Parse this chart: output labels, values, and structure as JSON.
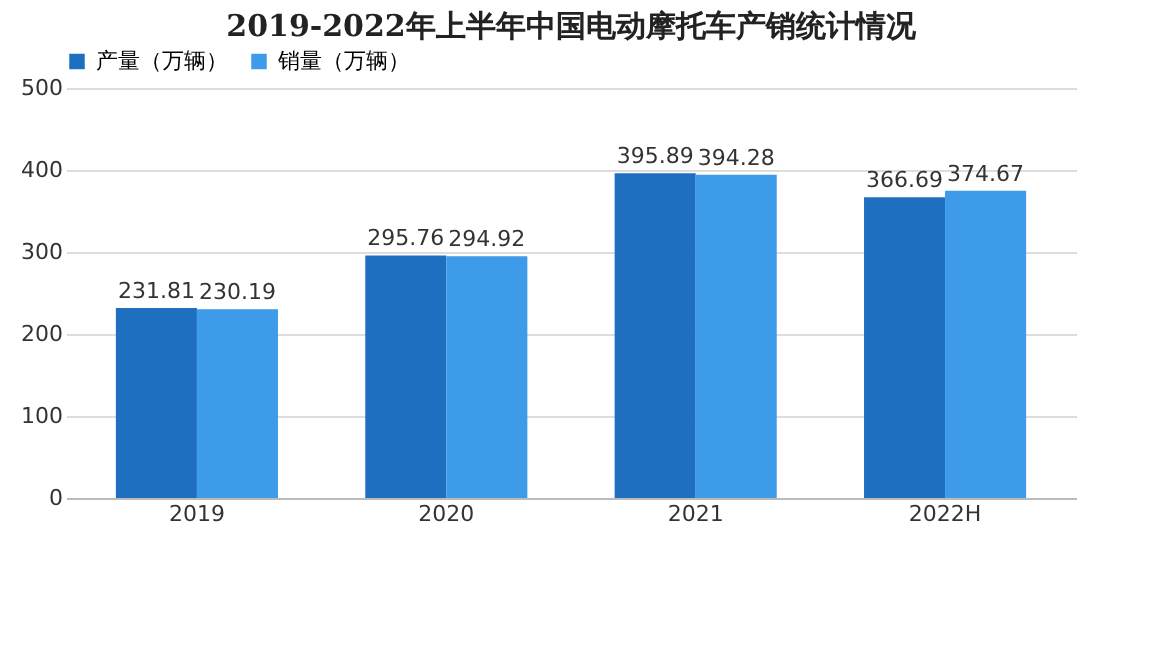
{
  "chart_data": {
    "type": "bar",
    "title": "2019-2022年上半年中国电动摩托车产销统计情况",
    "categories": [
      "2019",
      "2020",
      "2021",
      "2022H"
    ],
    "series": [
      {
        "name": "产量（万辆）",
        "color": "#1f6fc1",
        "values": [
          231.81,
          295.76,
          395.89,
          366.69
        ]
      },
      {
        "name": "销量（万辆）",
        "color": "#3d9be9",
        "values": [
          230.19,
          294.92,
          394.28,
          374.67
        ]
      }
    ],
    "ylim": [
      0,
      500
    ],
    "yticks": [
      0,
      100,
      200,
      300,
      400,
      500
    ],
    "grid": "y",
    "legend": "top",
    "data_labels": true
  }
}
